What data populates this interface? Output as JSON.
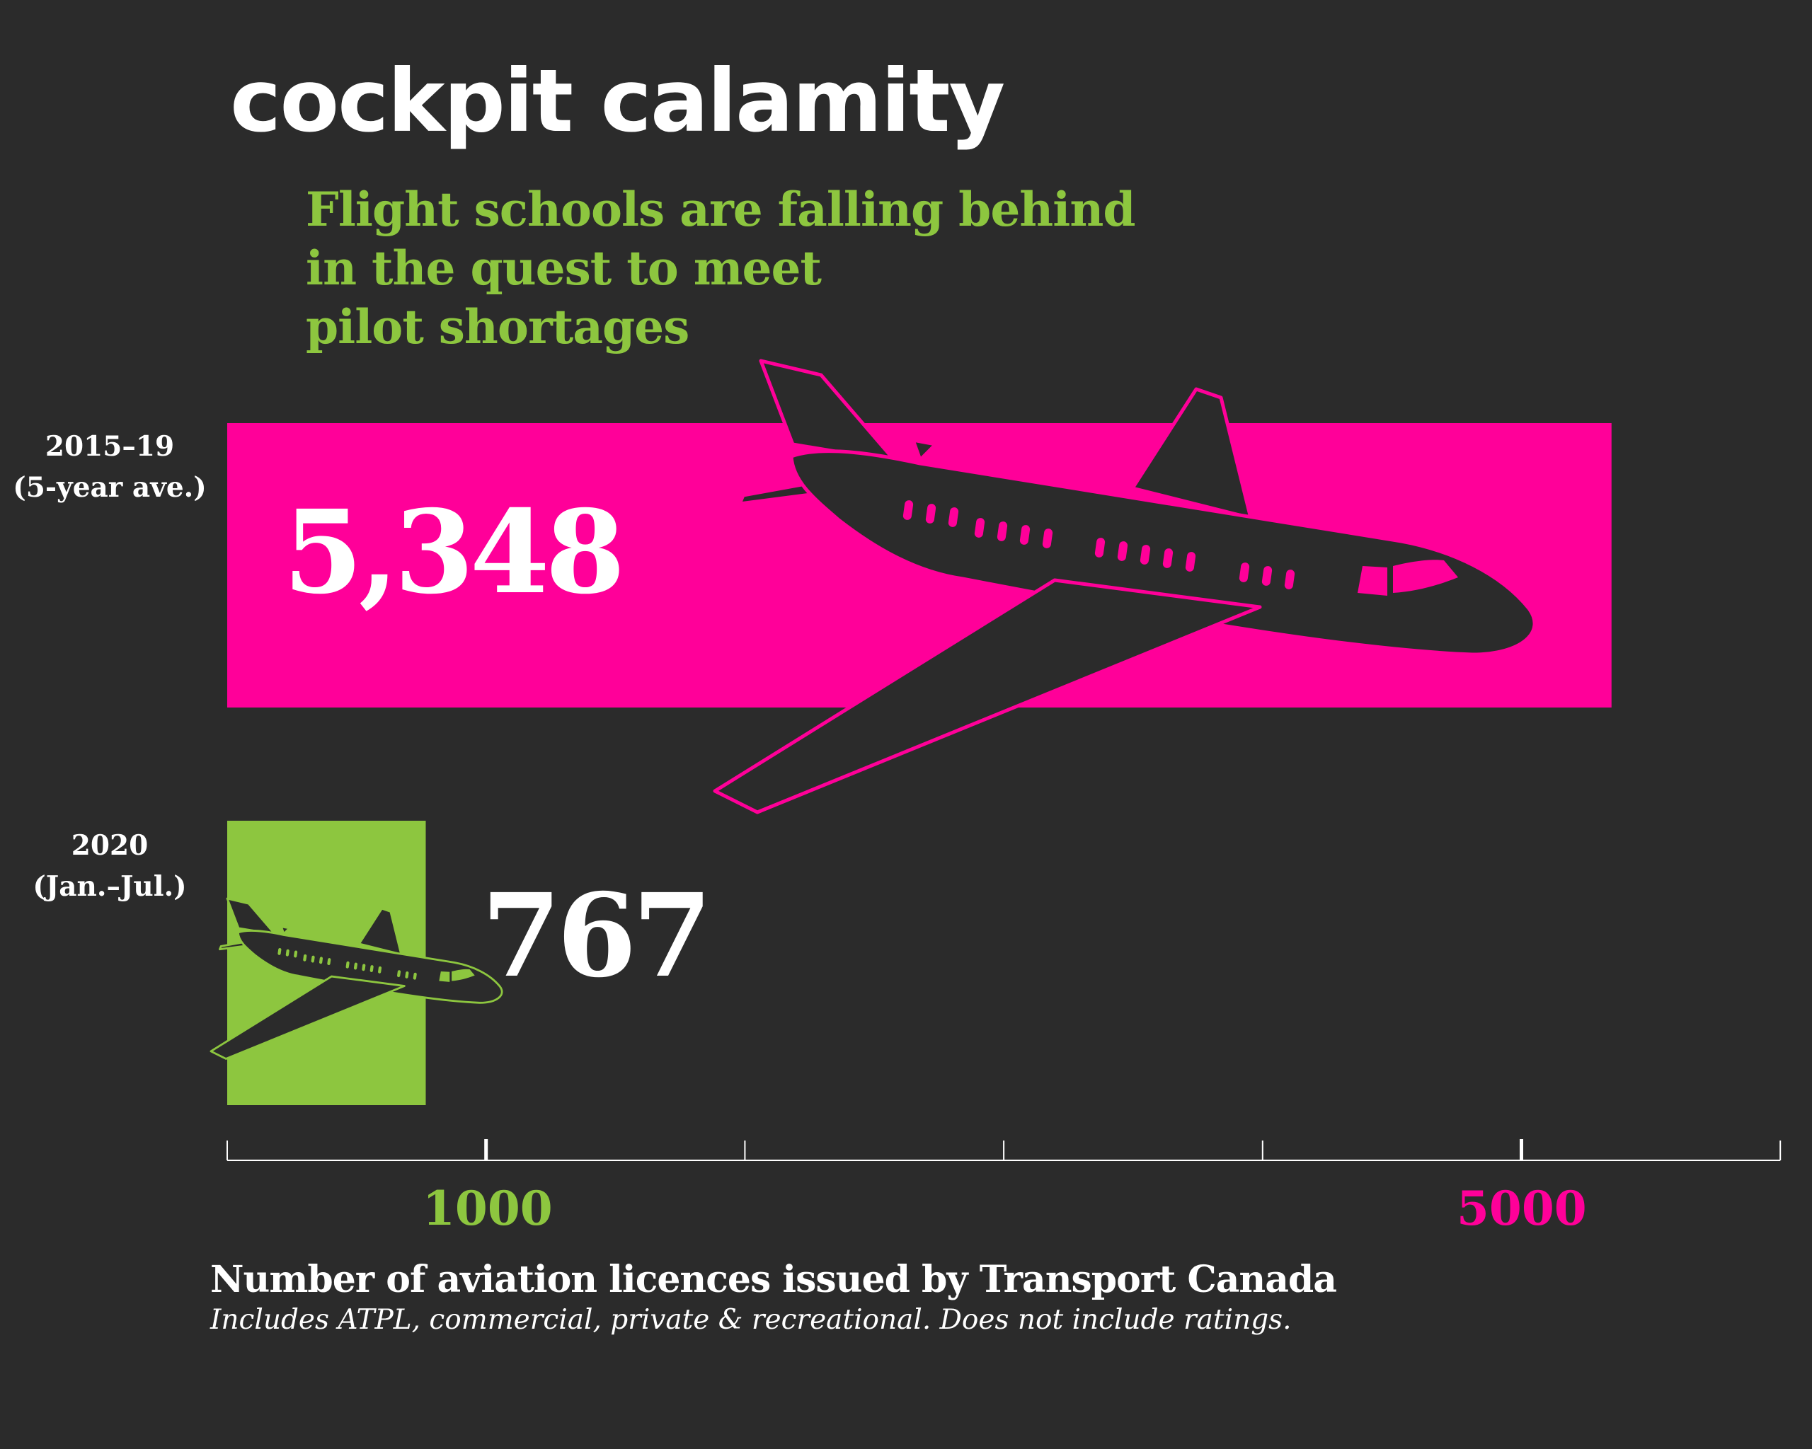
{
  "title": "cockpit calamity",
  "subtitle_lines": [
    "Flight schools are falling behind",
    "in the quest to meet",
    "pilot shortages"
  ],
  "colors": {
    "background": "#2b2b2b",
    "magenta": "#ff0099",
    "green": "#8dc63f",
    "text": "#ffffff",
    "plane": "#2b2b2b"
  },
  "chart_data": {
    "type": "bar",
    "orientation": "horizontal",
    "title": "cockpit calamity",
    "subtitle": "Flight schools are falling behind in the quest to meet pilot shortages",
    "xlabel": "Number of aviation licences issued by Transport Canada",
    "note": "Includes ATPL, commercial, private & recreational. Does not include ratings.",
    "categories": [
      {
        "line1": "2015–19",
        "line2": "(5-year ave.)"
      },
      {
        "line1": "2020",
        "line2": "(Jan.–Jul.)"
      }
    ],
    "values": [
      5348,
      767
    ],
    "value_labels": [
      "5,348",
      "767"
    ],
    "bar_colors": [
      "#ff0099",
      "#8dc63f"
    ],
    "xlim": [
      0,
      6000
    ],
    "ticks": [
      0,
      1000,
      2000,
      3000,
      4000,
      5000,
      6000
    ],
    "tick_labels": [
      {
        "value": 1000,
        "text": "1000",
        "color": "#8dc63f"
      },
      {
        "value": 5000,
        "text": "5000",
        "color": "#ff0099"
      }
    ],
    "grid": false,
    "legend": "none",
    "icons": [
      "airplane-icon"
    ]
  }
}
